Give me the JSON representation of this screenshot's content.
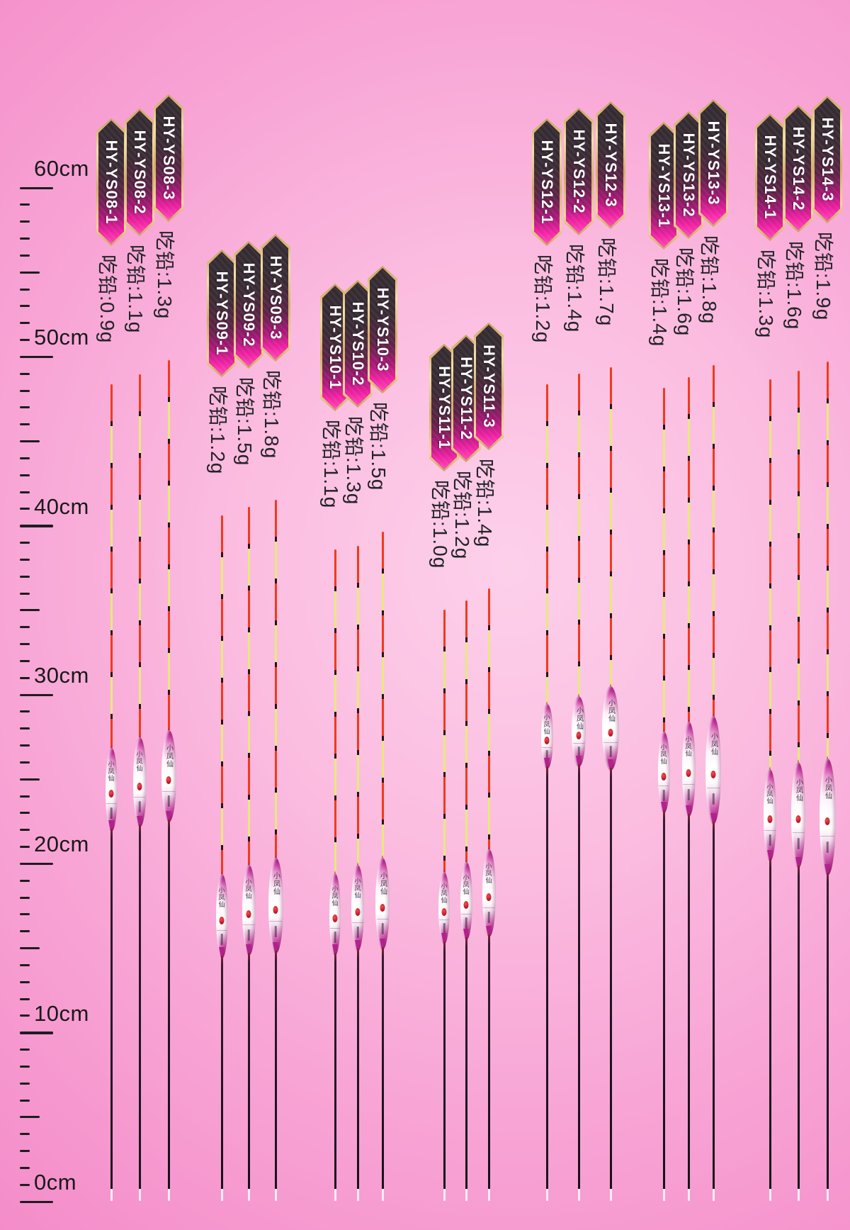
{
  "ruler": {
    "labels": [
      "60cm",
      "50cm",
      "40cm",
      "30cm",
      "20cm",
      "10cm",
      "0cm"
    ],
    "max_cm": 60,
    "min_cm": 0,
    "major_every_cm": 10,
    "medium_every_cm": 5,
    "minor_every_cm": 1
  },
  "floats": {
    "brand_mark": "小凤仙",
    "groups": [
      {
        "models": [
          {
            "name": "HY-YS08-1",
            "weight": "吃铅:0.9g"
          },
          {
            "name": "HY-YS08-2",
            "weight": "吃铅:1.1g"
          },
          {
            "name": "HY-YS08-3",
            "weight": "吃铅:1.3g"
          }
        ]
      },
      {
        "models": [
          {
            "name": "HY-YS09-1",
            "weight": "吃铅:1.2g"
          },
          {
            "name": "HY-YS09-2",
            "weight": "吃铅:1.5g"
          },
          {
            "name": "HY-YS09-3",
            "weight": "吃铅:1.8g"
          }
        ]
      },
      {
        "models": [
          {
            "name": "HY-YS10-1",
            "weight": "吃铅:1.1g"
          },
          {
            "name": "HY-YS10-2",
            "weight": "吃铅:1.3g"
          },
          {
            "name": "HY-YS10-3",
            "weight": "吃铅:1.5g"
          }
        ]
      },
      {
        "models": [
          {
            "name": "HY-YS11-1",
            "weight": "吃铅:1.0g"
          },
          {
            "name": "HY-YS11-2",
            "weight": "吃铅:1.2g"
          },
          {
            "name": "HY-YS11-3",
            "weight": "吃铅:1.4g"
          }
        ]
      },
      {
        "models": [
          {
            "name": "HY-YS12-1",
            "weight": "吃铅:1.2g"
          },
          {
            "name": "HY-YS12-2",
            "weight": "吃铅:1.4g"
          },
          {
            "name": "HY-YS12-3",
            "weight": "吃铅:1.7g"
          }
        ]
      },
      {
        "models": [
          {
            "name": "HY-YS13-1",
            "weight": "吃铅:1.4g"
          },
          {
            "name": "HY-YS13-2",
            "weight": "吃铅:1.6g"
          },
          {
            "name": "HY-YS13-3",
            "weight": "吃铅:1.8g"
          }
        ]
      },
      {
        "models": [
          {
            "name": "HY-YS14-1",
            "weight": "吃铅:1.3g"
          },
          {
            "name": "HY-YS14-2",
            "weight": "吃铅:1.6g"
          },
          {
            "name": "HY-YS14-3",
            "weight": "吃铅:1.9g"
          }
        ]
      }
    ]
  },
  "colors": {
    "background_pink": "#f8a6d6",
    "badge_magenta": "#ee21a2",
    "badge_gold": "#d4ad68",
    "antenna_red": "#f23a1a",
    "antenna_yellow": "#e9e87c",
    "body_magenta": "#b5208c",
    "tick_black": "#1d1d20"
  }
}
